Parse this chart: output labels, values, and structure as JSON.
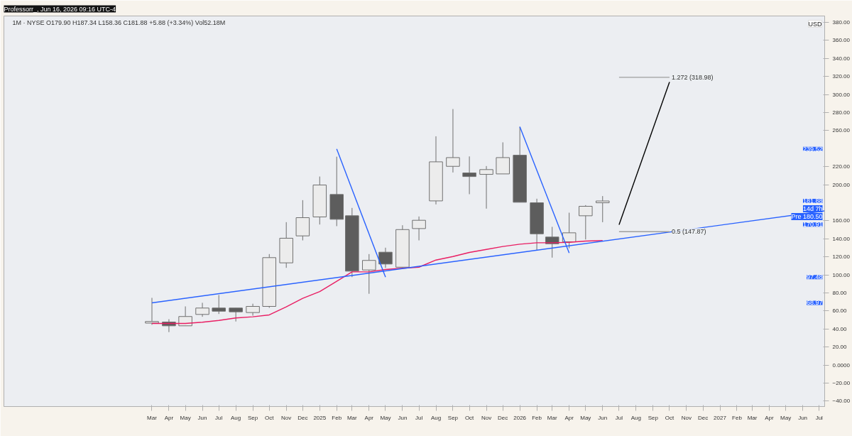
{
  "chart_data": {
    "type": "candlestick",
    "title": "Professorr_, Jun 16, 2026 09:16 UTC-4",
    "subtitle": "1M · NYSE  O179.90 H187.34 L158.36 C181.88 +5.88 (+3.34%) Vol52.18M",
    "ylabel": "USD",
    "x": [
      "2024-03",
      "2024-04",
      "2024-05",
      "2024-06",
      "2024-07",
      "2024-08",
      "2024-09",
      "2024-10",
      "2024-11",
      "2024-12",
      "2025-01",
      "2025-02",
      "2025-03",
      "2025-04",
      "2025-05",
      "2025-06",
      "2025-07",
      "2025-08",
      "2025-09",
      "2025-10",
      "2025-11",
      "2025-12",
      "2026-01",
      "2026-02",
      "2026-03",
      "2026-04",
      "2026-05",
      "2026-06"
    ],
    "ohlc": [
      [
        46.5,
        74.5,
        44.6,
        48.3
      ],
      [
        47.7,
        50.8,
        36.5,
        43.5
      ],
      [
        43.5,
        65,
        43.5,
        53.8
      ],
      [
        56.1,
        69,
        53.5,
        63.2
      ],
      [
        63.2,
        77.6,
        56.6,
        59.7
      ],
      [
        63.2,
        63.2,
        48.3,
        59
      ],
      [
        58.2,
        68,
        54.8,
        65
      ],
      [
        65,
        123,
        63.4,
        119.1
      ],
      [
        113.3,
        158.4,
        107.8,
        140.6
      ],
      [
        143.2,
        182.8,
        138.2,
        163.4
      ],
      [
        164.2,
        209,
        155.8,
        199.6
      ],
      [
        189.1,
        231,
        154,
        161.6
      ],
      [
        165.5,
        174.2,
        97.5,
        104.1
      ],
      [
        105.4,
        123,
        79,
        116
      ],
      [
        125.1,
        130.1,
        107.8,
        112
      ],
      [
        108.5,
        155,
        108.5,
        150.2
      ],
      [
        151.3,
        164.7,
        138.2,
        160.5
      ],
      [
        182,
        253.6,
        178.1,
        225.3
      ],
      [
        220.3,
        283.8,
        213.5,
        230
      ],
      [
        213,
        231.3,
        189.4,
        209
      ],
      [
        211.4,
        220.6,
        173.4,
        216.7
      ],
      [
        211.9,
        246.9,
        211.9,
        230
      ],
      [
        232.6,
        264.1,
        180.5,
        180.5
      ],
      [
        179.9,
        184.4,
        127.4,
        145.5
      ],
      [
        141.9,
        153.2,
        119.1,
        134.5
      ],
      [
        136.6,
        168.9,
        129.5,
        146.6
      ],
      [
        165.5,
        177.3,
        139.2,
        176
      ],
      [
        179.9,
        187.34,
        158.36,
        181.88
      ]
    ],
    "colors": [
      "#ececec",
      "#5d5d5d",
      "#ececec",
      "#ececec",
      "#5d5d5d",
      "#5d5d5d",
      "#ececec",
      "#ececec",
      "#ececec",
      "#ececec",
      "#ececec",
      "#5d5d5d",
      "#5d5d5d",
      "#ececec",
      "#5d5d5d",
      "#ececec",
      "#ececec",
      "#ececec",
      "#ececec",
      "#5d5d5d",
      "#ececec",
      "#ececec",
      "#5d5d5d",
      "#5d5d5d",
      "#5d5d5d",
      "#ececec",
      "#ececec",
      "#ececec"
    ],
    "series": [
      {
        "type": "line",
        "color": "#e91e63",
        "x": [
          "2024-03",
          "2024-04",
          "2024-05",
          "2024-06",
          "2024-07",
          "2024-08",
          "2024-09",
          "2024-10",
          "2024-11",
          "2024-12",
          "2025-01",
          "2025-02",
          "2025-03",
          "2025-04",
          "2025-05",
          "2025-06",
          "2025-07",
          "2025-08",
          "2025-09",
          "2025-10",
          "2025-11",
          "2025-12",
          "2026-01",
          "2026-02",
          "2026-03",
          "2026-04",
          "2026-05",
          "2026-06"
        ],
        "values": [
          46.1,
          46.1,
          46.1,
          47.5,
          49.5,
          52.2,
          53.5,
          55.6,
          64.5,
          73.9,
          81.5,
          92.8,
          103.3,
          103.3,
          105.9,
          107.3,
          108.5,
          116.4,
          120.3,
          124.8,
          128.2,
          131.4,
          134,
          135.6,
          135.6,
          136.1,
          137.4,
          138
        ]
      },
      {
        "type": "line",
        "color": "#2962ff",
        "x": [
          "2024-03",
          "2027-07-11"
        ],
        "values": [
          68.97,
          170.91
        ]
      },
      {
        "type": "line",
        "color": "#2962ff",
        "x": [
          "2025-02",
          "2025-05"
        ],
        "values": [
          239.52,
          97.48
        ]
      },
      {
        "type": "line",
        "color": "#2962ff",
        "x": [
          "2026-01",
          "2026-04"
        ],
        "values": [
          264.1,
          124.3
        ]
      },
      {
        "type": "line",
        "color": "#9e9e9e",
        "x": [
          "2026-07",
          "2026-10"
        ],
        "values": [
          318.98,
          318.98
        ]
      },
      {
        "type": "line",
        "color": "#9e9e9e",
        "x": [
          "2026-07",
          "2026-10"
        ],
        "values": [
          147.87,
          147.87
        ]
      },
      {
        "type": "line",
        "color": "#000000",
        "x": [
          "2026-07",
          "2026-10"
        ],
        "values": [
          155.6,
          313.7
        ]
      }
    ],
    "annotations": [
      {
        "text": "1.272 (318.98)",
        "x": "2026-10",
        "y": 318.98
      },
      {
        "text": "0.5 (147.87)",
        "x": "2026-10",
        "y": 147.87
      },
      "239.52",
      "181.88",
      "14d 7h",
      "Pre 180.50",
      {
        "text": "170.91",
        "x": "2027-07-11",
        "y": 170.91
      },
      "97.48",
      "68.97"
    ],
    "xlim": [
      "2023-06-05",
      "2027-07-11"
    ],
    "xticks": [
      {
        "value": "2024-03",
        "label": "Mar"
      },
      {
        "value": "2024-04",
        "label": "Apr"
      },
      {
        "value": "2024-05",
        "label": "May"
      },
      {
        "value": "2024-06",
        "label": "Jun"
      },
      {
        "value": "2024-07",
        "label": "Jul"
      },
      {
        "value": "2024-08",
        "label": "Aug"
      },
      {
        "value": "2024-09",
        "label": "Sep"
      },
      {
        "value": "2024-10",
        "label": "Oct"
      },
      {
        "value": "2024-11",
        "label": "Nov"
      },
      {
        "value": "2024-12",
        "label": "Dec"
      },
      {
        "value": "2025-01",
        "label": "2025"
      },
      {
        "value": "2025-02",
        "label": "Feb"
      },
      {
        "value": "2025-03",
        "label": "Mar"
      },
      {
        "value": "2025-04",
        "label": "Apr"
      },
      {
        "value": "2025-05",
        "label": "May"
      },
      {
        "value": "2025-06",
        "label": "Jun"
      },
      {
        "value": "2025-07",
        "label": "Jul"
      },
      {
        "value": "2025-08",
        "label": "Aug"
      },
      {
        "value": "2025-09",
        "label": "Sep"
      },
      {
        "value": "2025-10",
        "label": "Oct"
      },
      {
        "value": "2025-11",
        "label": "Nov"
      },
      {
        "value": "2025-12",
        "label": "Dec"
      },
      {
        "value": "2026-01",
        "label": "2026"
      },
      {
        "value": "2026-02",
        "label": "Feb"
      },
      {
        "value": "2026-03",
        "label": "Mar"
      },
      {
        "value": "2026-04",
        "label": "Apr"
      },
      {
        "value": "2026-05",
        "label": "May"
      },
      {
        "value": "2026-06",
        "label": "Jun"
      },
      {
        "value": "2026-07",
        "label": "Jul"
      },
      {
        "value": "2026-08",
        "label": "Aug"
      },
      {
        "value": "2026-09",
        "label": "Sep"
      },
      {
        "value": "2026-10",
        "label": "Oct"
      },
      {
        "value": "2026-11",
        "label": "Nov"
      },
      {
        "value": "2026-12",
        "label": "Dec"
      },
      {
        "value": "2027-01",
        "label": "2027"
      },
      {
        "value": "2027-02",
        "label": "Feb"
      },
      {
        "value": "2027-03",
        "label": "Mar"
      },
      {
        "value": "2027-04",
        "label": "Apr"
      },
      {
        "value": "2027-05",
        "label": "May"
      },
      {
        "value": "2027-06",
        "label": "Jun"
      },
      {
        "value": "2027-07",
        "label": "Jul"
      }
    ],
    "ylim": [
      -46,
      387
    ],
    "yticks": [
      {
        "value": -40,
        "label": "−40.00"
      },
      {
        "value": -20,
        "label": "−20.00"
      },
      {
        "value": 0,
        "label": "0.0000"
      },
      {
        "value": 20,
        "label": "20.00"
      },
      {
        "value": 40,
        "label": "40.00"
      },
      {
        "value": 60,
        "label": "60.00"
      },
      {
        "value": 80,
        "label": "80.00"
      },
      {
        "value": 100,
        "label": "100.00"
      },
      {
        "value": 120,
        "label": "120.00"
      },
      {
        "value": 140,
        "label": "140.00"
      },
      {
        "value": 160,
        "label": "160.00"
      },
      {
        "value": 200,
        "label": "200.00"
      },
      {
        "value": 220,
        "label": "220.00"
      },
      {
        "value": 260,
        "label": "260.00"
      },
      {
        "value": 280,
        "label": "280.00"
      },
      {
        "value": 300,
        "label": "300.00"
      },
      {
        "value": 320,
        "label": "320.00"
      },
      {
        "value": 340,
        "label": "340.00"
      },
      {
        "value": 360,
        "label": "360.00"
      },
      {
        "value": 380,
        "label": "380.00"
      }
    ]
  }
}
